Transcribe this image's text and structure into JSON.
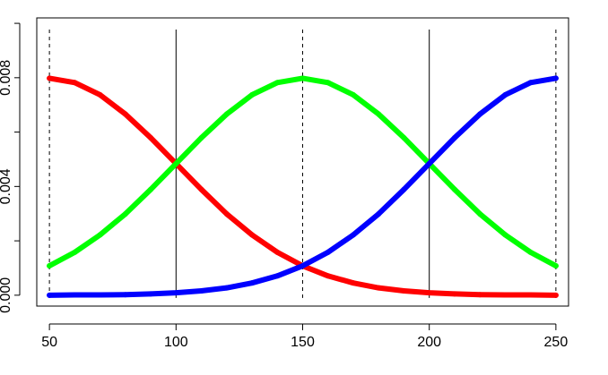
{
  "chart_data": {
    "type": "line",
    "title": "",
    "xlabel": "",
    "ylabel": "",
    "xlim": [
      45,
      255
    ],
    "ylim": [
      -0.0004,
      0.0102
    ],
    "x_ticks": [
      50,
      100,
      150,
      200,
      250
    ],
    "x_tick_labels": [
      "50",
      "100",
      "150",
      "200",
      "250"
    ],
    "y_ticks": [
      0.0,
      0.002,
      0.004,
      0.006,
      0.008,
      0.01
    ],
    "y_tick_labels": [
      "0.000",
      "",
      "0.004",
      "",
      "0.008",
      ""
    ],
    "vlines": [
      {
        "x": 50,
        "style": "dashed"
      },
      {
        "x": 100,
        "style": "solid"
      },
      {
        "x": 150,
        "style": "dashed"
      },
      {
        "x": 200,
        "style": "solid"
      },
      {
        "x": 250,
        "style": "dashed"
      }
    ],
    "legend": "none",
    "grid": false,
    "series": [
      {
        "color": "#ff0000",
        "x": [
          50,
          60,
          70,
          80,
          90,
          100,
          110,
          120,
          130,
          140,
          150,
          160,
          170,
          180,
          190,
          200,
          210,
          220,
          230,
          240,
          250
        ],
        "y": [
          0.00798,
          0.00782,
          0.00737,
          0.00666,
          0.00579,
          0.00484,
          0.00389,
          0.00299,
          0.00222,
          0.00158,
          0.00108,
          0.00071,
          0.00045,
          0.00027,
          0.00016,
          9e-05,
          5e-05,
          2e-05,
          1e-05,
          1e-05,
          0.0
        ]
      },
      {
        "color": "#00ff00",
        "x": [
          50,
          60,
          70,
          80,
          90,
          100,
          110,
          120,
          130,
          140,
          150,
          160,
          170,
          180,
          190,
          200,
          210,
          220,
          230,
          240,
          250
        ],
        "y": [
          0.00108,
          0.00158,
          0.00222,
          0.00299,
          0.00389,
          0.00484,
          0.00579,
          0.00666,
          0.00737,
          0.00782,
          0.00798,
          0.00782,
          0.00737,
          0.00666,
          0.00579,
          0.00484,
          0.00389,
          0.00299,
          0.00222,
          0.00158,
          0.00108
        ]
      },
      {
        "color": "#0000ff",
        "x": [
          50,
          60,
          70,
          80,
          90,
          100,
          110,
          120,
          130,
          140,
          150,
          160,
          170,
          180,
          190,
          200,
          210,
          220,
          230,
          240,
          250
        ],
        "y": [
          0.0,
          1e-05,
          1e-05,
          2e-05,
          5e-05,
          9e-05,
          0.00016,
          0.00027,
          0.00045,
          0.00071,
          0.00108,
          0.00158,
          0.00222,
          0.00299,
          0.00389,
          0.00484,
          0.00579,
          0.00666,
          0.00737,
          0.00782,
          0.00798
        ]
      }
    ]
  }
}
